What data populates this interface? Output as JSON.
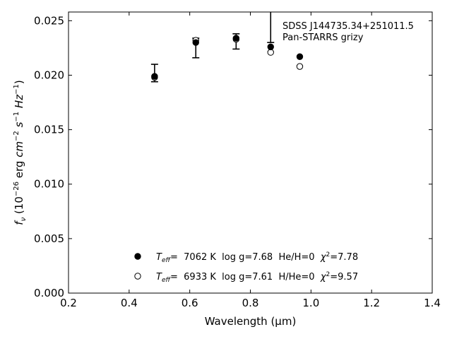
{
  "chart_data": {
    "type": "scatter",
    "xlabel": "Wavelength (μm)",
    "ylabel": "f_ν (10^−26 erg cm^−2 s^−1 Hz^−1)",
    "xlim": [
      0.2,
      1.4
    ],
    "ylim": [
      0.0,
      0.0258
    ],
    "xticks": [
      0.2,
      0.4,
      0.6,
      0.8,
      1.0,
      1.2,
      1.4
    ],
    "xtick_labels": [
      "0.2",
      "0.4",
      "0.6",
      "0.8",
      "1.0",
      "1.2",
      "1.4"
    ],
    "yticks": [
      0.0,
      0.005,
      0.01,
      0.015,
      0.02,
      0.025
    ],
    "ytick_labels": [
      "0.000",
      "0.005",
      "0.010",
      "0.015",
      "0.020",
      "0.025"
    ],
    "grid": false,
    "annotation": {
      "line1": "SDSS J144735.34+251011.5",
      "line2": "Pan-STARRS grizy"
    },
    "observed": [
      {
        "x": 0.484,
        "y": 0.0202,
        "err": 0.0008
      },
      {
        "x": 0.62,
        "y": 0.0225,
        "err": 0.0009
      },
      {
        "x": 0.753,
        "y": 0.0231,
        "err": 0.0007
      },
      {
        "x": 0.867,
        "y": 0.0258,
        "err": 0.0028
      }
    ],
    "series": [
      {
        "legend": "T_eff= 7062 K log g=7.68 He/H=0 χ²=7.78",
        "marker": "filled",
        "x": [
          0.484,
          0.62,
          0.753,
          0.867,
          0.963
        ],
        "y": [
          0.0199,
          0.023,
          0.0234,
          0.0226,
          0.0217
        ]
      },
      {
        "legend": "T_eff= 6933 K log g=7.61 H/He=0 χ²=9.57",
        "marker": "open",
        "x": [
          0.484,
          0.62,
          0.753,
          0.867,
          0.963
        ],
        "y": [
          0.0198,
          0.0232,
          0.0233,
          0.0221,
          0.0208
        ]
      }
    ],
    "legend_entries": [
      {
        "teff_label": "T",
        "teff_sub": "eff",
        "text": "=  7062 K  log g=7.68  He/H=0  ",
        "chi": "χ",
        "chi_sup": "2",
        "chi_val": "=7.78"
      },
      {
        "teff_label": "T",
        "teff_sub": "eff",
        "text": "=  6933 K  log g=7.61  H/He=0  ",
        "chi": "χ",
        "chi_sup": "2",
        "chi_val": "=9.57"
      }
    ],
    "legend_position": "lower-center"
  }
}
